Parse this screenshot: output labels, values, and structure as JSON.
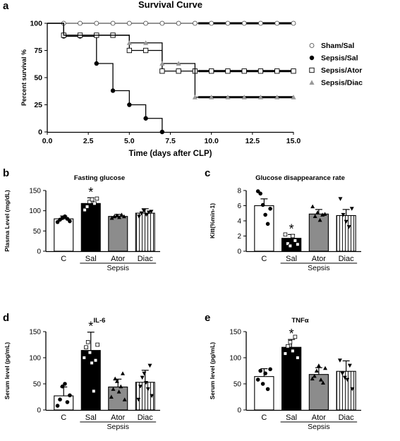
{
  "chart_data": [
    {
      "panel": "a",
      "type": "line",
      "title": "Survival Curve",
      "xlabel": "Time (days after CLP)",
      "ylabel": "Percent survival %",
      "xlim": [
        0,
        15
      ],
      "ylim": [
        0,
        100
      ],
      "x_ticks": [
        "0.0",
        "2.5",
        "5.0",
        "7.5",
        "10.0",
        "12.5",
        "15.0"
      ],
      "y_ticks": [
        "0",
        "25",
        "50",
        "75",
        "100"
      ],
      "legend_position": "right",
      "series": [
        {
          "name": "Sham/Sal",
          "marker": "open-circle",
          "steps": [
            [
              0,
              100
            ],
            [
              15,
              100
            ]
          ],
          "points": [
            [
              1,
              100
            ],
            [
              2,
              100
            ],
            [
              3,
              100
            ],
            [
              4,
              100
            ],
            [
              5,
              100
            ],
            [
              6,
              100
            ],
            [
              7,
              100
            ],
            [
              8,
              100
            ],
            [
              9,
              100
            ],
            [
              10,
              100
            ],
            [
              11,
              100
            ],
            [
              12,
              100
            ],
            [
              13,
              100
            ],
            [
              14,
              100
            ],
            [
              15,
              100
            ]
          ]
        },
        {
          "name": "Sepsis/Sal",
          "marker": "filled-circle",
          "steps": [
            [
              0,
              100
            ],
            [
              1,
              88
            ],
            [
              2,
              88
            ],
            [
              3,
              63
            ],
            [
              4,
              38
            ],
            [
              5,
              25
            ],
            [
              6,
              12.5
            ],
            [
              7,
              0
            ]
          ],
          "points": [
            [
              1,
              88
            ],
            [
              2,
              88
            ],
            [
              3,
              63
            ],
            [
              4,
              38
            ],
            [
              5,
              25
            ],
            [
              6,
              12.5
            ],
            [
              7,
              0
            ]
          ]
        },
        {
          "name": "Sepsis/Ator",
          "marker": "open-square",
          "steps": [
            [
              0,
              100
            ],
            [
              1,
              89
            ],
            [
              5,
              75
            ],
            [
              7,
              56
            ],
            [
              15,
              56
            ]
          ],
          "points": [
            [
              1,
              89
            ],
            [
              2,
              89
            ],
            [
              3,
              89
            ],
            [
              4,
              89
            ],
            [
              5,
              75
            ],
            [
              6,
              75
            ],
            [
              7,
              56
            ],
            [
              8,
              56
            ],
            [
              9,
              56
            ],
            [
              10,
              56
            ],
            [
              11,
              56
            ],
            [
              12,
              56
            ],
            [
              13,
              56
            ],
            [
              14,
              56
            ],
            [
              15,
              56
            ]
          ]
        },
        {
          "name": "Sepsis/Diac",
          "marker": "filled-triangle",
          "steps": [
            [
              0,
              100
            ],
            [
              1,
              89
            ],
            [
              5,
              82
            ],
            [
              7,
              63
            ],
            [
              9,
              32
            ],
            [
              15,
              32
            ]
          ],
          "points": [
            [
              5,
              82
            ],
            [
              6,
              82
            ],
            [
              7,
              63
            ],
            [
              8,
              63
            ],
            [
              9,
              32
            ],
            [
              10,
              32
            ],
            [
              11,
              32
            ],
            [
              12,
              32
            ],
            [
              13,
              32
            ],
            [
              14,
              32
            ],
            [
              15,
              32
            ]
          ]
        }
      ]
    },
    {
      "panel": "b",
      "type": "bar",
      "title": "Fasting glucose",
      "ylabel": "Plasma Level (mg/dL)",
      "ylim": [
        0,
        150
      ],
      "y_ticks": [
        "0",
        "50",
        "100",
        "150"
      ],
      "categories": [
        "C",
        "Sal",
        "Ator",
        "Diac"
      ],
      "group_label": "Sepsis",
      "values": [
        80,
        118,
        86,
        94
      ],
      "errors": [
        7,
        14,
        5,
        11
      ],
      "fills": [
        "white",
        "black",
        "gray",
        "striped"
      ],
      "significance": [
        "",
        "*",
        "",
        ""
      ],
      "points": [
        [
          72,
          78,
          82,
          86,
          80,
          74
        ],
        [
          102,
          110,
          122,
          128,
          118,
          130
        ],
        [
          82,
          86,
          88,
          84,
          90,
          86
        ],
        [
          86,
          94,
          100,
          90,
          96,
          98
        ]
      ]
    },
    {
      "panel": "c",
      "type": "bar",
      "title": "Glucose disappearance rate",
      "ylabel": "Kitt(%min-1)",
      "ylim": [
        0,
        8
      ],
      "y_ticks": [
        "0",
        "2",
        "4",
        "6",
        "8"
      ],
      "categories": [
        "C",
        "Sal",
        "Ator",
        "Diac"
      ],
      "group_label": "Sepsis",
      "values": [
        6.0,
        1.7,
        4.9,
        4.7
      ],
      "errors": [
        0.9,
        0.5,
        0.6,
        0.8
      ],
      "fills": [
        "white",
        "black",
        "gray",
        "striped"
      ],
      "significance": [
        "",
        "*",
        "",
        ""
      ],
      "points": [
        [
          7.9,
          7.6,
          6.1,
          4.8,
          3.6,
          5.6
        ],
        [
          2.2,
          1.0,
          0.7,
          2.0,
          1.4,
          0.9
        ],
        [
          5.9,
          4.6,
          5.1,
          4.1,
          4.8,
          4.9
        ],
        [
          6.9,
          4.8,
          3.9,
          3.2,
          5.6
        ]
      ]
    },
    {
      "panel": "d",
      "type": "bar",
      "title": "IL-6",
      "ylabel": "Serum level (pg/mL)",
      "ylim": [
        0,
        150
      ],
      "y_ticks": [
        "0",
        "50",
        "100",
        "150"
      ],
      "categories": [
        "C",
        "Sal",
        "Ator",
        "Diac"
      ],
      "group_label": "Sepsis",
      "values": [
        27,
        114,
        44,
        53
      ],
      "errors": [
        17,
        35,
        15,
        23
      ],
      "fills": [
        "white",
        "black",
        "gray",
        "striped"
      ],
      "significance": [
        "",
        "*",
        "",
        ""
      ],
      "points": [
        [
          8,
          20,
          45,
          50,
          15,
          28
        ],
        [
          100,
          120,
          130,
          110,
          90,
          36,
          95,
          125
        ],
        [
          25,
          40,
          60,
          55,
          35,
          45,
          70,
          20
        ],
        [
          20,
          45,
          62,
          70,
          52,
          40,
          85,
          27
        ]
      ]
    },
    {
      "panel": "e",
      "type": "bar",
      "title": "TNFα",
      "ylabel": "Serum level (pg/mL)",
      "ylim": [
        0,
        150
      ],
      "y_ticks": [
        "0",
        "50",
        "100",
        "150"
      ],
      "categories": [
        "C",
        "Sal",
        "Ator",
        "Diac"
      ],
      "group_label": "Sepsis",
      "values": [
        64,
        120,
        68,
        74
      ],
      "errors": [
        15,
        15,
        13,
        20
      ],
      "fills": [
        "white",
        "black",
        "gray",
        "striped"
      ],
      "significance": [
        "",
        "*",
        "",
        ""
      ],
      "points": [
        [
          58,
          75,
          50,
          70,
          40,
          78
        ],
        [
          108,
          122,
          130,
          113,
          140,
          100
        ],
        [
          60,
          65,
          75,
          85,
          58,
          52,
          80
        ],
        [
          95,
          70,
          62,
          58,
          85,
          40
        ]
      ]
    }
  ],
  "panel_letters": [
    "a",
    "b",
    "c",
    "d",
    "e"
  ]
}
